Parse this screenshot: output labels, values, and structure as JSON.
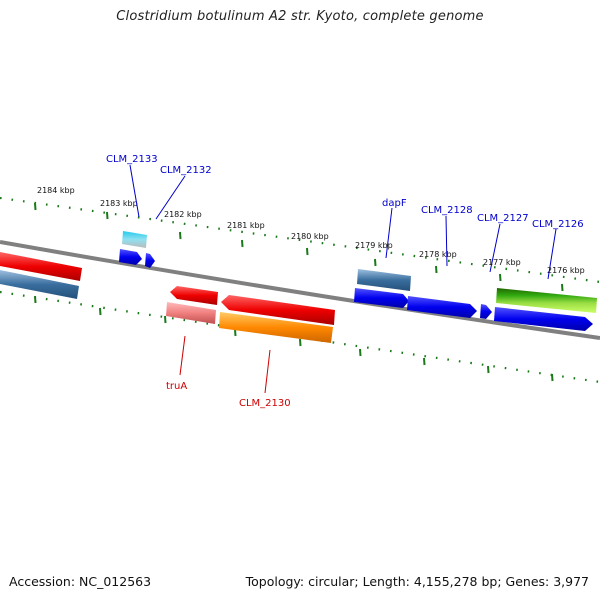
{
  "title": "Clostridium botulinum A2 str. Kyoto, complete genome",
  "footer": {
    "accession": "Accession: NC_012563",
    "summary": "Topology: circular; Length: 4,155,278 bp; Genes: 3,977"
  },
  "scale": {
    "ticks": [
      "2184 kbp",
      "2183 kbp",
      "2182 kbp",
      "2181 kbp",
      "2180 kbp",
      "2179 kbp",
      "2178 kbp",
      "2177 kbp",
      "2176 kbp"
    ]
  },
  "genes": {
    "top": [
      "CLM_2133",
      "CLM_2132",
      "dapF",
      "CLM_2128",
      "CLM_2127",
      "CLM_2126"
    ],
    "bottom": [
      "truA",
      "CLM_2130"
    ]
  },
  "colors": {
    "forward_label": "#0000cc",
    "reverse_label": "#cc0000",
    "backbone": "#808080",
    "tick": "#1a7a1a",
    "gene_blue": "#0000ee",
    "gene_red": "#ee0000",
    "gene_orange": "#ff8800",
    "gene_green": "#33aa11",
    "gene_steel": "#3a6e9e"
  }
}
